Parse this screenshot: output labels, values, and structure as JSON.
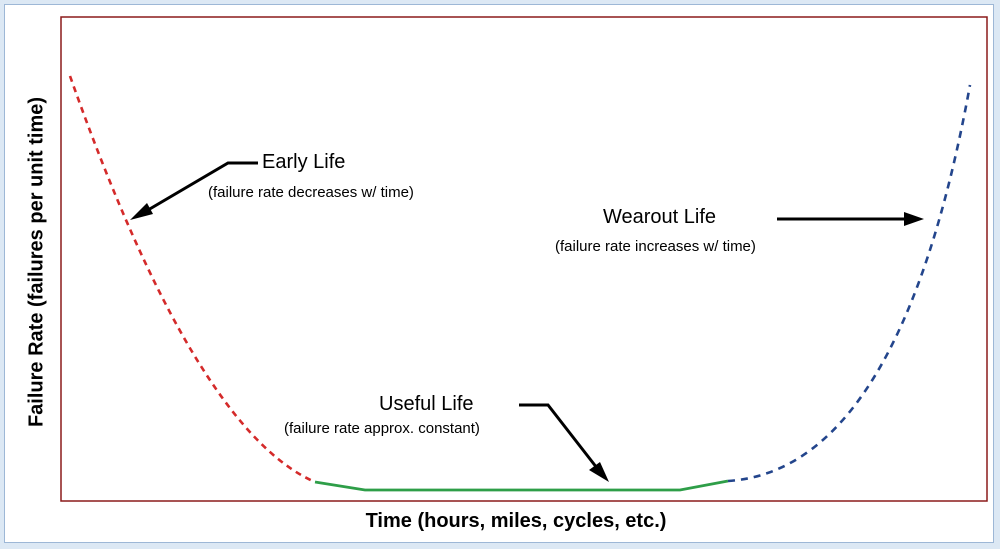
{
  "axes": {
    "ylabel": "Failure Rate (failures per unit time)",
    "xlabel": "Time (hours, miles, cycles, etc.)"
  },
  "annotations": {
    "early": {
      "title": "Early Life",
      "subtitle": "(failure rate decreases w/ time)"
    },
    "wearout": {
      "title": "Wearout Life",
      "subtitle": "(failure rate increases w/ time)"
    },
    "useful": {
      "title": "Useful Life",
      "subtitle": "(failure rate approx. constant)"
    }
  },
  "colors": {
    "early": "#d42a2a",
    "useful": "#2e9e48",
    "wearout": "#23458c",
    "frame": "#8b1a1a",
    "arrow": "#000000"
  }
}
